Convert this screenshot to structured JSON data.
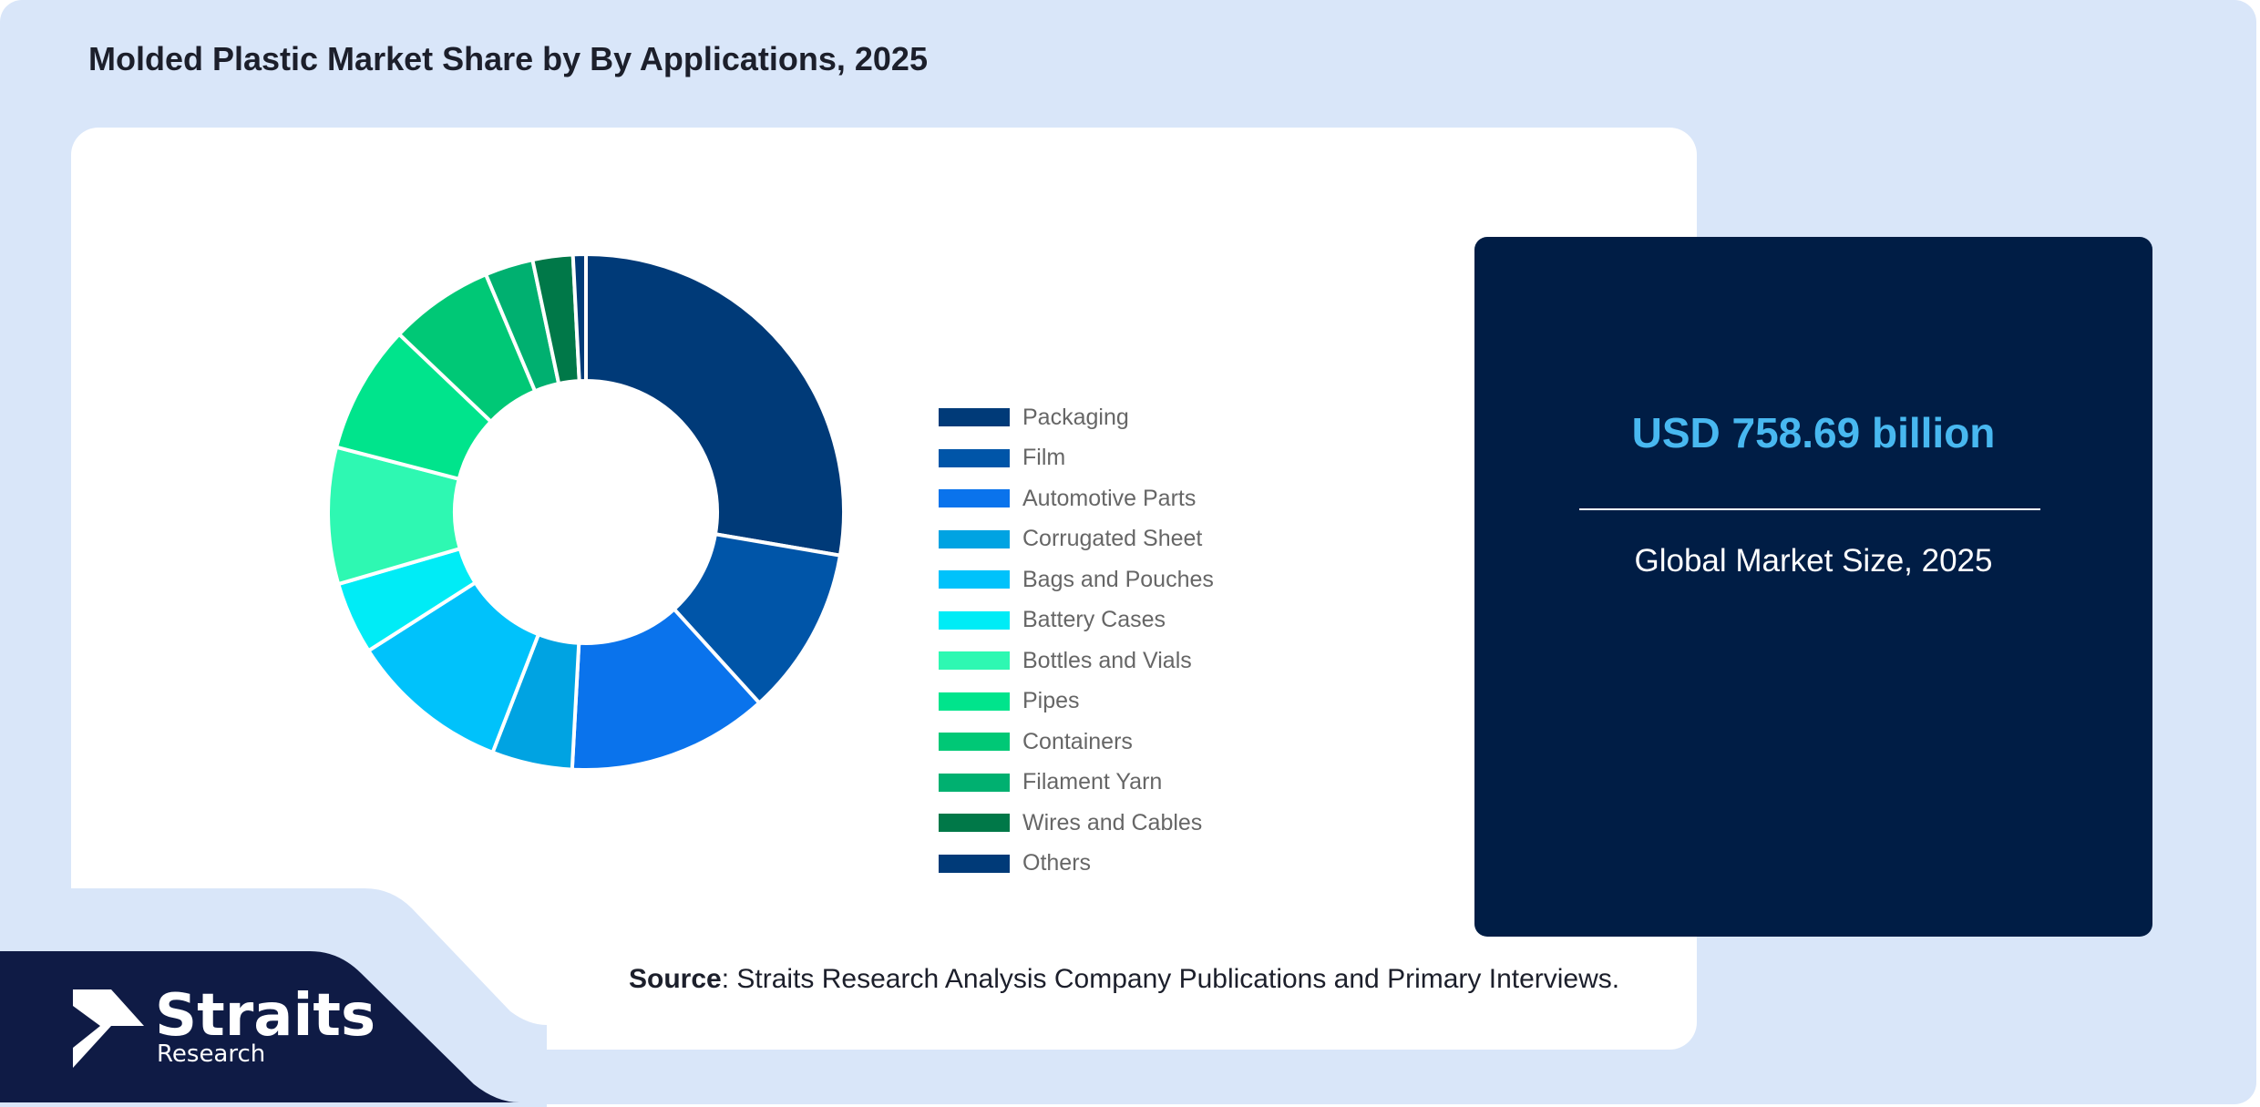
{
  "title": "Molded Plastic Market Share by By Applications, 2025",
  "market": {
    "value": "USD 758.69 billion",
    "label": "Global Market Size, 2025"
  },
  "source": {
    "prefix": "Source",
    "text": ": Straits Research Analysis Company Publications and Primary Interviews."
  },
  "brand": {
    "name": "Straits",
    "sub": "Research"
  },
  "colors": {
    "background": "#d9e6f9",
    "panel": "#001d45",
    "accent": "#48b8f0",
    "brand": "#0f1b45"
  },
  "chart_data": {
    "type": "pie",
    "variant": "donut",
    "legend": "right",
    "categories": [
      "Packaging",
      "Film",
      "Automotive Parts",
      "Corrugated Sheet",
      "Bags and Pouches",
      "Battery Cases",
      "Bottles and Vials",
      "Pipes",
      "Containers",
      "Filament Yarn",
      "Wires and Cables",
      "Others"
    ],
    "values": [
      27.5,
      10.5,
      12.5,
      5.0,
      10.0,
      4.5,
      8.5,
      8.0,
      6.5,
      3.0,
      2.5,
      0.8
    ],
    "colors": [
      "#003a78",
      "#0055a8",
      "#0a73ec",
      "#00a3e2",
      "#00c2fb",
      "#00ecf6",
      "#2ef8b2",
      "#00e48c",
      "#00c876",
      "#00b070",
      "#007848",
      "#003a78"
    ]
  }
}
